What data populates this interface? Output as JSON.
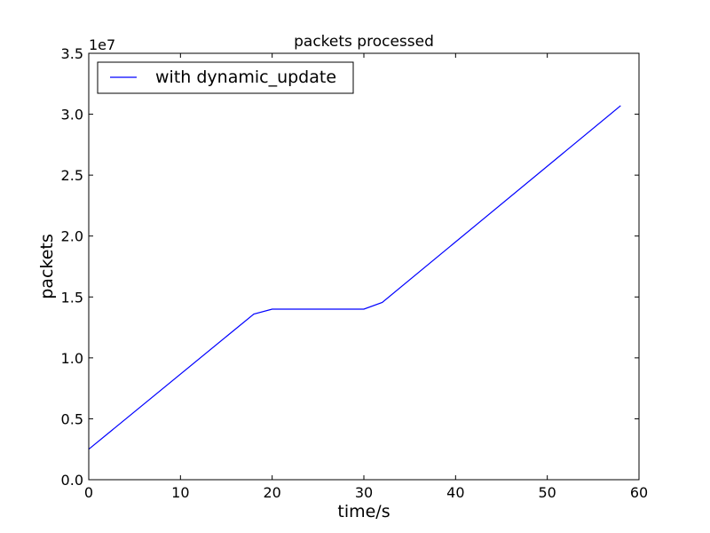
{
  "chart_data": {
    "type": "line",
    "title": "packets processed",
    "xlabel": "time/s",
    "ylabel": "packets",
    "y_offset_label": "1e7",
    "xlim": [
      0,
      60
    ],
    "ylim": [
      0,
      3.5
    ],
    "y_scale_multiplier": 10000000,
    "xticks": [
      0,
      10,
      20,
      30,
      40,
      50,
      60
    ],
    "yticks": [
      0.0,
      0.5,
      1.0,
      1.5,
      2.0,
      2.5,
      3.0,
      3.5
    ],
    "xtick_labels": [
      "0",
      "10",
      "20",
      "30",
      "40",
      "50",
      "60"
    ],
    "ytick_labels": [
      "0.0",
      "0.5",
      "1.0",
      "1.5",
      "2.0",
      "2.5",
      "3.0",
      "3.5"
    ],
    "grid": false,
    "legend_position": "top-left",
    "series": [
      {
        "name": "with dynamic_update",
        "color": "#0000ff",
        "x": [
          0,
          18,
          20,
          30,
          32,
          58
        ],
        "y": [
          0.25,
          1.36,
          1.4,
          1.4,
          1.455,
          3.07
        ]
      }
    ]
  }
}
